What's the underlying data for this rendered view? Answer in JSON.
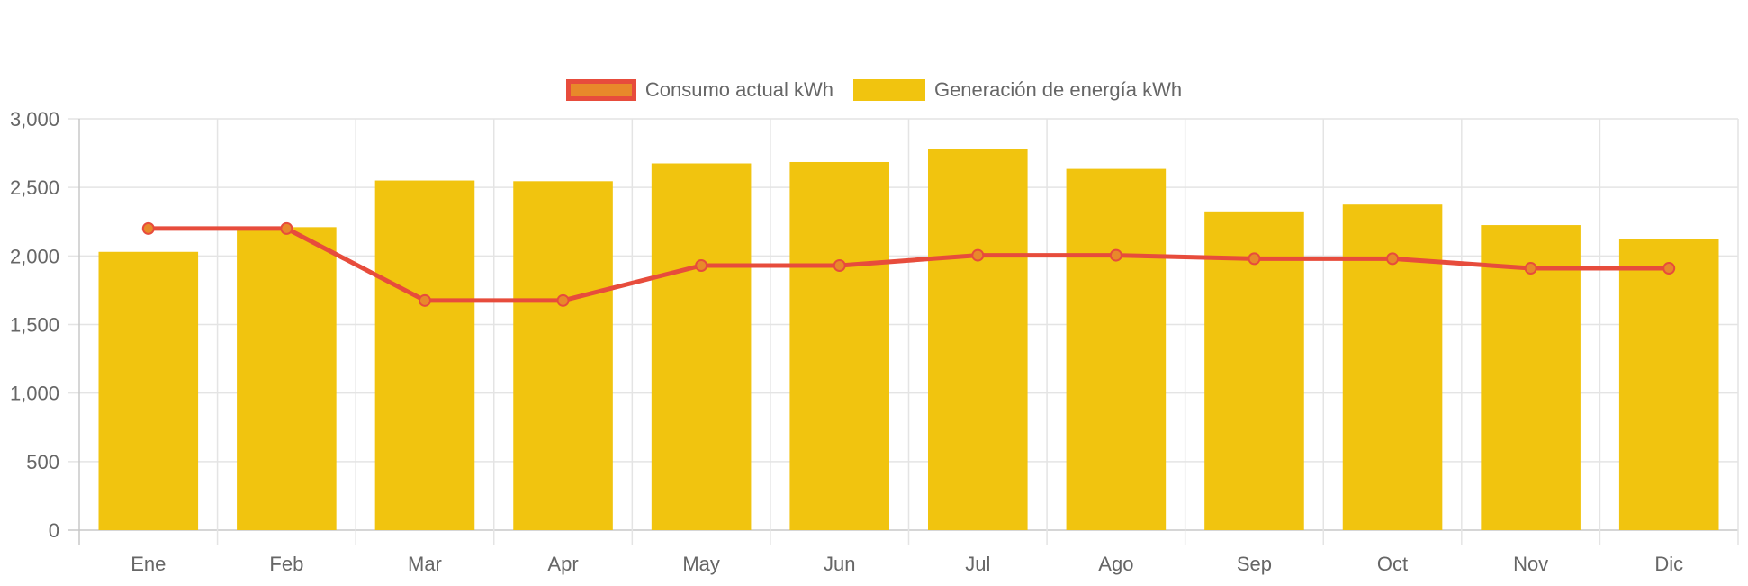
{
  "chart_data": {
    "type": "bar",
    "categories": [
      "Ene",
      "Feb",
      "Mar",
      "Apr",
      "May",
      "Jun",
      "Jul",
      "Ago",
      "Sep",
      "Oct",
      "Nov",
      "Dic"
    ],
    "series": [
      {
        "name": "Consumo actual kWh",
        "type": "line",
        "values": [
          2200,
          2200,
          1675,
          1675,
          1930,
          1930,
          2005,
          2005,
          1980,
          1980,
          1910,
          1910
        ],
        "color": "#e74c3c",
        "fill_color": "#e8892a"
      },
      {
        "name": "Generación de energía kWh",
        "type": "bar",
        "values": [
          2030,
          2210,
          2550,
          2545,
          2675,
          2685,
          2780,
          2635,
          2325,
          2375,
          2225,
          2125
        ],
        "color": "#f1c40f"
      }
    ],
    "yticks": [
      "0",
      "500",
      "1,000",
      "1,500",
      "2,000",
      "2,500",
      "3,000"
    ],
    "ylim": [
      0,
      3000
    ],
    "grid": true,
    "legend_position": "top-center"
  }
}
